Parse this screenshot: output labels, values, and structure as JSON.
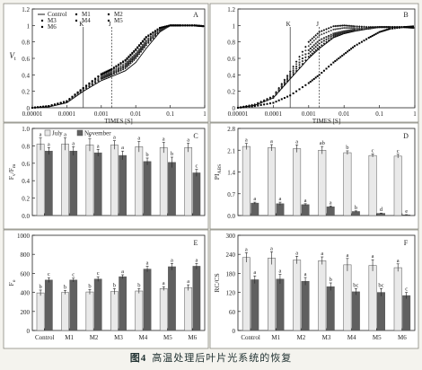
{
  "caption": {
    "figure_number": "图4",
    "text": "高温处理后叶片光系统的恢复"
  },
  "colors": {
    "july": "#e9e9e9",
    "november": "#606060",
    "frame": "#333333",
    "background": "#f4f3ee"
  },
  "chart_data": [
    {
      "panel": "A",
      "type": "line",
      "ylabel": "V",
      "ylabel_sub": "t",
      "xlabel": "TIMES [S]",
      "xscale": "log",
      "xlim": [
        1e-05,
        1
      ],
      "ylim": [
        0,
        1.2
      ],
      "xticks": [
        "0.00001",
        "0.0001",
        "0.001",
        "0.01",
        "0.1",
        "1"
      ],
      "yticks": [
        "0",
        "0.2",
        "0.4",
        "0.6",
        "0.8",
        "1",
        "1.2"
      ],
      "markers": [
        {
          "label": "K",
          "x": 0.0003
        },
        {
          "label": "J",
          "x": 0.002
        }
      ],
      "legend": [
        "Control",
        "M1",
        "M2",
        "M3",
        "M4",
        "M5",
        "M6"
      ],
      "series": [
        {
          "name": "Control",
          "style": "line",
          "x": [
            1e-05,
            3e-05,
            0.0001,
            0.0003,
            0.001,
            0.002,
            0.005,
            0.01,
            0.02,
            0.05,
            0.1,
            0.2,
            0.5,
            1
          ],
          "y": [
            0,
            0.01,
            0.06,
            0.2,
            0.33,
            0.38,
            0.45,
            0.55,
            0.72,
            0.92,
            1.0,
            1.0,
            1.0,
            0.99
          ]
        },
        {
          "name": "M1",
          "style": "dot",
          "x": [
            1e-05,
            3e-05,
            0.0001,
            0.0003,
            0.001,
            0.002,
            0.005,
            0.01,
            0.02,
            0.05,
            0.1,
            0.2,
            0.5,
            1
          ],
          "y": [
            0,
            0.02,
            0.07,
            0.22,
            0.36,
            0.41,
            0.5,
            0.62,
            0.78,
            0.94,
            1.0,
            1.0,
            1.0,
            0.99
          ]
        },
        {
          "name": "M2",
          "style": "dot",
          "x": [
            1e-05,
            3e-05,
            0.0001,
            0.0003,
            0.001,
            0.002,
            0.005,
            0.01,
            0.02,
            0.05,
            0.1,
            0.2,
            0.5,
            1
          ],
          "y": [
            0,
            0.02,
            0.07,
            0.21,
            0.35,
            0.4,
            0.48,
            0.6,
            0.76,
            0.93,
            1.0,
            1.0,
            1.0,
            0.99
          ]
        },
        {
          "name": "M3",
          "style": "dot",
          "x": [
            1e-05,
            3e-05,
            0.0001,
            0.0003,
            0.001,
            0.002,
            0.005,
            0.01,
            0.02,
            0.05,
            0.1,
            0.2,
            0.5,
            1
          ],
          "y": [
            0,
            0.02,
            0.07,
            0.22,
            0.37,
            0.42,
            0.52,
            0.64,
            0.8,
            0.95,
            1.0,
            1.0,
            1.0,
            0.99
          ]
        },
        {
          "name": "M4",
          "style": "dot",
          "x": [
            1e-05,
            3e-05,
            0.0001,
            0.0003,
            0.001,
            0.002,
            0.005,
            0.01,
            0.02,
            0.05,
            0.1,
            0.2,
            0.5,
            1
          ],
          "y": [
            0,
            0.02,
            0.08,
            0.23,
            0.38,
            0.44,
            0.54,
            0.66,
            0.82,
            0.96,
            1.0,
            1.0,
            1.0,
            0.99
          ]
        },
        {
          "name": "M5",
          "style": "dot",
          "x": [
            1e-05,
            3e-05,
            0.0001,
            0.0003,
            0.001,
            0.002,
            0.005,
            0.01,
            0.02,
            0.05,
            0.1,
            0.2,
            0.5,
            1
          ],
          "y": [
            0,
            0.02,
            0.08,
            0.24,
            0.4,
            0.46,
            0.57,
            0.7,
            0.85,
            0.97,
            1.0,
            1.0,
            1.0,
            0.99
          ]
        },
        {
          "name": "M6",
          "style": "dot",
          "x": [
            1e-05,
            3e-05,
            0.0001,
            0.0003,
            0.001,
            0.002,
            0.005,
            0.01,
            0.02,
            0.05,
            0.1,
            0.2,
            0.5,
            1
          ],
          "y": [
            0,
            0.02,
            0.08,
            0.24,
            0.41,
            0.47,
            0.58,
            0.71,
            0.86,
            0.97,
            1.0,
            1.0,
            1.0,
            0.99
          ]
        }
      ]
    },
    {
      "panel": "B",
      "type": "line",
      "ylabel": "",
      "xlabel": "TIMES [S]",
      "xscale": "log",
      "xlim": [
        1e-05,
        1
      ],
      "ylim": [
        0,
        1.2
      ],
      "xticks": [
        "0.00001",
        "0.0001",
        "0.001",
        "0.01",
        "0.1",
        "1"
      ],
      "yticks": [
        "0",
        "0.2",
        "0.4",
        "0.6",
        "0.8",
        "1",
        "1.2"
      ],
      "markers": [
        {
          "label": "K",
          "x": 0.0003
        },
        {
          "label": "J",
          "x": 0.002
        }
      ],
      "series": [
        {
          "name": "Control",
          "style": "line",
          "x": [
            1e-05,
            3e-05,
            0.0001,
            0.0003,
            0.001,
            0.002,
            0.005,
            0.01,
            0.02,
            0.05,
            0.1,
            0.2,
            0.5,
            1
          ],
          "y": [
            0,
            0.03,
            0.12,
            0.35,
            0.6,
            0.72,
            0.85,
            0.9,
            0.93,
            0.96,
            0.98,
            0.98,
            0.98,
            0.97
          ]
        },
        {
          "name": "M1",
          "style": "dot",
          "x": [
            1e-05,
            3e-05,
            0.0001,
            0.0003,
            0.001,
            0.002,
            0.005,
            0.01,
            0.02,
            0.05,
            0.1,
            0.2,
            0.5,
            1
          ],
          "y": [
            0,
            0.03,
            0.12,
            0.36,
            0.62,
            0.74,
            0.86,
            0.91,
            0.94,
            0.96,
            0.98,
            0.98,
            0.98,
            0.97
          ]
        },
        {
          "name": "M2",
          "style": "dot",
          "x": [
            1e-05,
            3e-05,
            0.0001,
            0.0003,
            0.001,
            0.002,
            0.005,
            0.01,
            0.02,
            0.05,
            0.1,
            0.2,
            0.5,
            1
          ],
          "y": [
            0,
            0.03,
            0.13,
            0.38,
            0.66,
            0.78,
            0.88,
            0.92,
            0.95,
            0.97,
            0.98,
            0.98,
            0.98,
            0.97
          ]
        },
        {
          "name": "M3",
          "style": "dot",
          "x": [
            1e-05,
            3e-05,
            0.0001,
            0.0003,
            0.001,
            0.002,
            0.005,
            0.01,
            0.02,
            0.05,
            0.1,
            0.2,
            0.5,
            1
          ],
          "y": [
            0,
            0.03,
            0.13,
            0.4,
            0.7,
            0.82,
            0.9,
            0.93,
            0.95,
            0.97,
            0.98,
            0.98,
            0.98,
            0.97
          ]
        },
        {
          "name": "M4",
          "style": "dot",
          "x": [
            1e-05,
            3e-05,
            0.0001,
            0.0003,
            0.001,
            0.002,
            0.005,
            0.01,
            0.02,
            0.05,
            0.1,
            0.2,
            0.5,
            1
          ],
          "y": [
            0,
            0.04,
            0.14,
            0.42,
            0.75,
            0.88,
            0.95,
            0.97,
            0.97,
            0.97,
            0.98,
            0.98,
            0.98,
            0.97
          ]
        },
        {
          "name": "M5",
          "style": "dot",
          "x": [
            1e-05,
            3e-05,
            0.0001,
            0.0003,
            0.001,
            0.002,
            0.005,
            0.01,
            0.02,
            0.05,
            0.1,
            0.2,
            0.5,
            1
          ],
          "y": [
            0,
            0.04,
            0.14,
            0.44,
            0.8,
            0.92,
            0.99,
            1.0,
            0.99,
            0.98,
            0.98,
            0.98,
            0.98,
            0.97
          ]
        },
        {
          "name": "M6",
          "style": "dot",
          "x": [
            1e-05,
            3e-05,
            0.0001,
            0.0003,
            0.001,
            0.002,
            0.005,
            0.01,
            0.02,
            0.05,
            0.1,
            0.2,
            0.5,
            1
          ],
          "y": [
            0,
            0.02,
            0.06,
            0.15,
            0.3,
            0.4,
            0.55,
            0.65,
            0.75,
            0.85,
            0.92,
            0.96,
            0.98,
            0.99
          ]
        }
      ]
    },
    {
      "panel": "C",
      "type": "bar",
      "ylabel": "F",
      "ylabel_parts": [
        "F",
        "v",
        "/F",
        "m"
      ],
      "ylim": [
        0,
        1.0
      ],
      "yticks": [
        "0.0",
        "0.2",
        "0.4",
        "0.6",
        "0.8",
        "1.0"
      ],
      "categories": [
        "Control",
        "M1",
        "M2",
        "M3",
        "M4",
        "M5",
        "M6"
      ],
      "legend": [
        "July",
        "November"
      ],
      "series": [
        {
          "name": "July",
          "values": [
            0.82,
            0.82,
            0.81,
            0.81,
            0.79,
            0.78,
            0.78
          ],
          "errors": [
            0.07,
            0.07,
            0.07,
            0.05,
            0.06,
            0.06,
            0.05
          ],
          "letters": [
            "a",
            "a",
            "a",
            "a",
            "a",
            "a",
            "a"
          ]
        },
        {
          "name": "November",
          "values": [
            0.74,
            0.74,
            0.72,
            0.69,
            0.62,
            0.61,
            0.49
          ],
          "errors": [
            0.04,
            0.05,
            0.04,
            0.05,
            0.04,
            0.06,
            0.04
          ],
          "letters": [
            "a",
            "a",
            "a",
            "a",
            "b",
            "b",
            "c"
          ]
        }
      ]
    },
    {
      "panel": "D",
      "type": "bar",
      "ylabel": "PI",
      "ylabel_parts": [
        "PI",
        "ABS"
      ],
      "ylim": [
        0,
        2.8
      ],
      "yticks": [
        "0.0",
        "0.7",
        "1.4",
        "2.1",
        "2.8"
      ],
      "categories": [
        "Control",
        "M1",
        "M2",
        "M3",
        "M4",
        "M5",
        "M6"
      ],
      "series": [
        {
          "name": "July",
          "values": [
            2.22,
            2.18,
            2.15,
            2.1,
            2.02,
            1.93,
            1.91
          ],
          "errors": [
            0.1,
            0.1,
            0.12,
            0.12,
            0.06,
            0.05,
            0.06
          ],
          "letters": [
            "a",
            "a",
            "a",
            "ab",
            "b",
            "c",
            "c"
          ]
        },
        {
          "name": "November",
          "values": [
            0.4,
            0.38,
            0.35,
            0.28,
            0.13,
            0.07,
            0.02
          ],
          "errors": [
            0.03,
            0.05,
            0.03,
            0.03,
            0.02,
            0.01,
            0.01
          ],
          "letters": [
            "a",
            "a",
            "a",
            "a",
            "b",
            "d",
            "e"
          ]
        }
      ]
    },
    {
      "panel": "E",
      "type": "bar",
      "ylabel": "F",
      "ylabel_parts": [
        "F",
        "o",
        "",
        ""
      ],
      "ylim": [
        0,
        1000
      ],
      "yticks": [
        "0",
        "200",
        "400",
        "600",
        "800",
        "1000"
      ],
      "categories": [
        "Control",
        "M1",
        "M2",
        "M3",
        "M4",
        "M5",
        "M6"
      ],
      "series": [
        {
          "name": "July",
          "values": [
            395,
            400,
            405,
            410,
            415,
            440,
            450
          ],
          "errors": [
            30,
            20,
            25,
            30,
            25,
            20,
            30
          ],
          "letters": [
            "b",
            "b",
            "b",
            "b",
            "b",
            "a",
            "a"
          ]
        },
        {
          "name": "November",
          "values": [
            530,
            530,
            540,
            565,
            645,
            670,
            675
          ],
          "errors": [
            25,
            20,
            25,
            20,
            30,
            35,
            30
          ],
          "letters": [
            "c",
            "c",
            "c",
            "a",
            "a",
            "a",
            "a"
          ]
        }
      ]
    },
    {
      "panel": "F",
      "type": "bar",
      "ylabel": "RC/CS",
      "ylabel_parts": [
        "RC/CS",
        ""
      ],
      "ylim": [
        0,
        300
      ],
      "yticks": [
        "0",
        "60",
        "120",
        "180",
        "240",
        "300"
      ],
      "categories": [
        "Control",
        "M1",
        "M2",
        "M3",
        "M4",
        "M5",
        "M6"
      ],
      "series": [
        {
          "name": "July",
          "values": [
            230,
            228,
            222,
            220,
            207,
            205,
            198
          ],
          "errors": [
            15,
            20,
            12,
            12,
            20,
            18,
            12
          ],
          "letters": [
            "a",
            "a",
            "a",
            "a",
            "a",
            "a",
            "a"
          ]
        },
        {
          "name": "November",
          "values": [
            160,
            162,
            155,
            138,
            122,
            120,
            110
          ],
          "errors": [
            12,
            15,
            12,
            12,
            10,
            12,
            10
          ],
          "letters": [
            "a",
            "a",
            "a",
            "b",
            "bc",
            "bc",
            "c"
          ]
        }
      ]
    }
  ]
}
